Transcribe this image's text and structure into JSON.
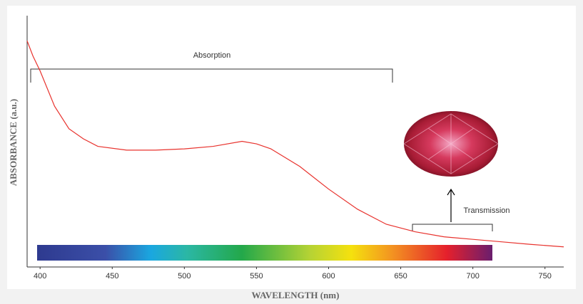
{
  "chart_data": {
    "type": "line",
    "x_label": "WAVELENGTH (nm)",
    "y_label": "ABSORBANCE (a.u.)",
    "annotations": [
      "Absorption",
      "Transmission"
    ],
    "x": [
      391,
      395,
      400,
      410,
      420,
      430,
      440,
      460,
      480,
      500,
      520,
      540,
      550,
      560,
      580,
      600,
      620,
      640,
      660,
      680,
      700,
      720,
      740,
      763
    ],
    "series": [
      {
        "color": "#e8322d",
        "values": [
          0.9,
          0.84,
          0.78,
          0.64,
          0.55,
          0.51,
          0.48,
          0.465,
          0.465,
          0.47,
          0.48,
          0.5,
          0.49,
          0.47,
          0.4,
          0.31,
          0.23,
          0.17,
          0.14,
          0.12,
          0.11,
          0.1,
          0.09,
          0.08
        ]
      }
    ],
    "xlim": [
      391,
      763
    ],
    "ylim": [
      0,
      1
    ],
    "xticks": [
      400,
      450,
      500,
      550,
      600,
      650,
      700,
      750
    ],
    "grid": false
  }
}
